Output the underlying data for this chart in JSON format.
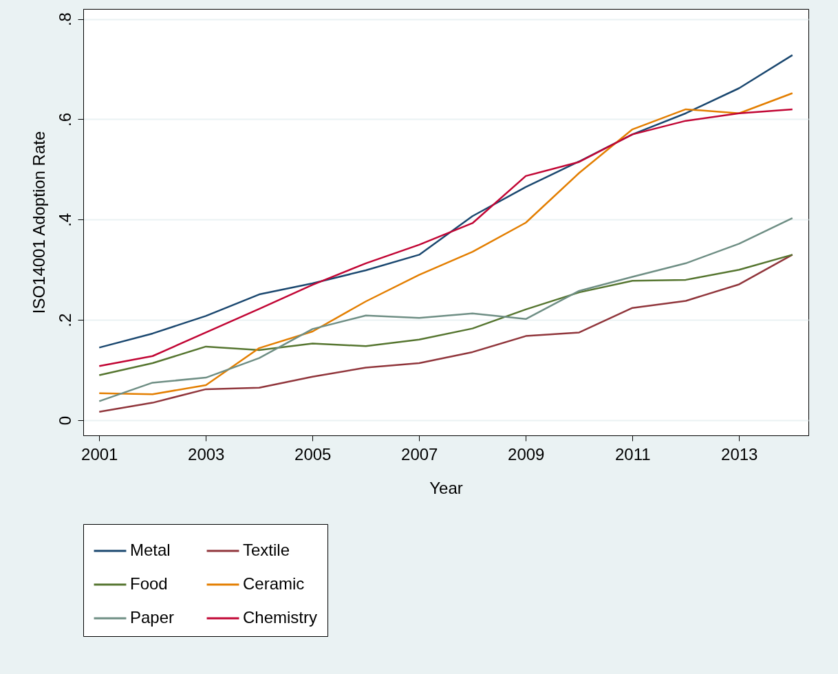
{
  "chart_data": {
    "type": "line",
    "xlabel": "Year",
    "ylabel": "ISO14001 Adoption Rate",
    "x": [
      2001,
      2002,
      2003,
      2004,
      2005,
      2006,
      2007,
      2008,
      2009,
      2010,
      2011,
      2012,
      2013,
      2014
    ],
    "xlim": [
      2000.7,
      2014.3
    ],
    "xticks": [
      2001,
      2003,
      2005,
      2007,
      2009,
      2011,
      2013
    ],
    "ylim": [
      -0.03,
      0.82
    ],
    "yticks": [
      0,
      {
        "value": 0.2,
        "label": ".2"
      },
      {
        "value": 0.4,
        "label": ".4"
      },
      {
        "value": 0.6,
        "label": ".6"
      },
      {
        "value": 0.8,
        "label": ".8"
      }
    ],
    "grid": "y",
    "legend": "bottom",
    "marker": "none",
    "line_style": "solid",
    "series": [
      {
        "name": "Metal",
        "color": "#1a476f",
        "values": [
          0.145,
          0.173,
          0.208,
          0.251,
          0.273,
          0.299,
          0.33,
          0.407,
          0.465,
          0.516,
          0.57,
          0.612,
          0.662,
          0.728
        ]
      },
      {
        "name": "Textile",
        "color": "#90353b",
        "values": [
          0.017,
          0.035,
          0.062,
          0.065,
          0.087,
          0.105,
          0.114,
          0.136,
          0.168,
          0.175,
          0.224,
          0.238,
          0.271,
          0.33
        ]
      },
      {
        "name": "Food",
        "color": "#55752f",
        "values": [
          0.09,
          0.114,
          0.147,
          0.14,
          0.153,
          0.148,
          0.161,
          0.183,
          0.221,
          0.255,
          0.278,
          0.28,
          0.3,
          0.33
        ]
      },
      {
        "name": "Ceramic",
        "color": "#e37e00",
        "values": [
          0.054,
          0.052,
          0.07,
          0.144,
          0.177,
          0.237,
          0.29,
          0.336,
          0.394,
          0.493,
          0.58,
          0.62,
          0.612,
          0.652
        ]
      },
      {
        "name": "Paper",
        "color": "#6e8e84",
        "values": [
          0.038,
          0.075,
          0.085,
          0.124,
          0.182,
          0.209,
          0.204,
          0.213,
          0.202,
          0.258,
          0.286,
          0.313,
          0.352,
          0.403
        ]
      },
      {
        "name": "Chemistry",
        "color": "#c10534",
        "values": [
          0.108,
          0.128,
          0.175,
          0.222,
          0.27,
          0.313,
          0.35,
          0.393,
          0.487,
          0.515,
          0.57,
          0.597,
          0.612,
          0.62
        ]
      }
    ]
  }
}
